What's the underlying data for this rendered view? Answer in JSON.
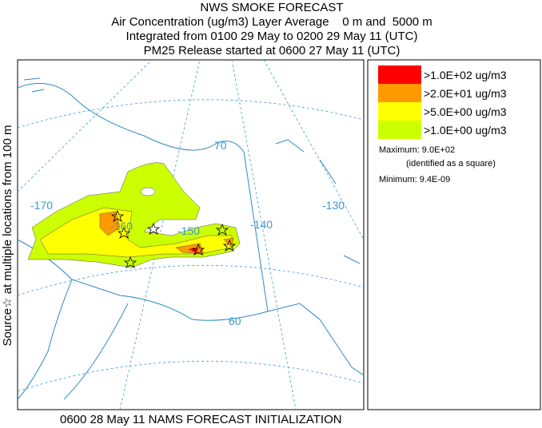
{
  "header": {
    "title": "NWS SMOKE FORECAST",
    "lines": [
      "Air Concentration (ug/m3) Layer Average    0 m and  5000 m",
      "Integrated from 0100 29 May to 0200 29 May 11 (UTC)",
      "PM25 Release started at 0600 27 May 11 (UTC)"
    ]
  },
  "side_label": "Source☆ at multiple locations from 100 m",
  "map": {
    "grid_labels": [
      "-170",
      "-160",
      "-150",
      "-140",
      "-130",
      "70",
      "60"
    ]
  },
  "legend": {
    "items": [
      {
        "label": ">1.0E+02 ug/m3",
        "color": "#ff0000"
      },
      {
        "label": ">2.0E+01 ug/m3",
        "color": "#ff9900"
      },
      {
        "label": ">5.0E+00 ug/m3",
        "color": "#ffff00"
      },
      {
        "label": ">1.0E+00 ug/m3",
        "color": "#ccff00"
      }
    ],
    "maximum": "Maximum: 9.0E+02",
    "maximum_note": "(identified as a square)",
    "minimum": "Minimum: 9.4E-09"
  },
  "footer": "0600 28 May 11 NAMS FORECAST INITIALIZATION"
}
